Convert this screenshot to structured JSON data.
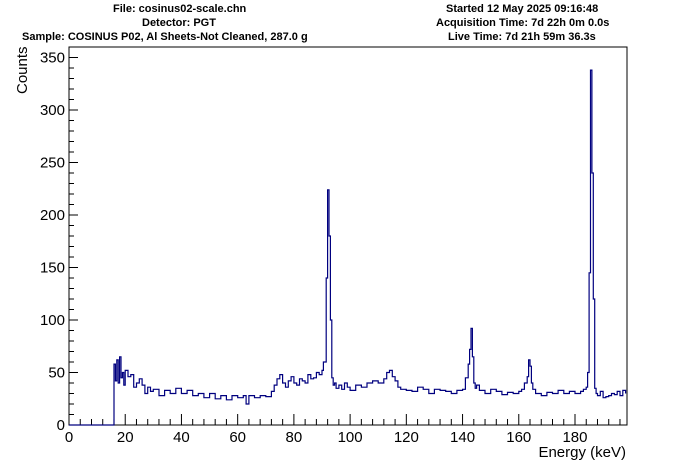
{
  "header": {
    "file": "File: cosinus02-scale.chn",
    "detector": "Detector: PGT",
    "sample": "Sample: COSINUS P02, Al Sheets-Not Cleaned, 287.0 g",
    "started": "Started 12 May 2025 09:16:48",
    "acquisition": "Acquisition Time: 7d 22h 0m 0.0s",
    "live": "Live Time: 7d 21h 59m 36.3s"
  },
  "colors": {
    "series": "#00007f",
    "axis": "#000000"
  },
  "chart_data": {
    "type": "line",
    "style": "step",
    "title": "",
    "xlabel": "Energy (keV)",
    "ylabel": "Counts",
    "xlim": [
      0,
      198.5
    ],
    "ylim": [
      0,
      360
    ],
    "xticks": [
      0,
      20,
      40,
      60,
      80,
      100,
      120,
      140,
      160,
      180
    ],
    "xtick_labels": [
      "0",
      "20",
      "40",
      "60",
      "80",
      "100",
      "120",
      "140",
      "160",
      "180"
    ],
    "yticks": [
      0,
      50,
      100,
      150,
      200,
      250,
      300,
      350
    ],
    "ytick_labels": [
      "0",
      "50",
      "100",
      "150",
      "200",
      "250",
      "300",
      "350"
    ],
    "grid": false,
    "series": [
      {
        "x": [
          0,
          16.0,
          16.5,
          17.0,
          17.5,
          18.0,
          18.5,
          19.0,
          19.5,
          20.0,
          21.0,
          22.0,
          23.0,
          24.0,
          25.0,
          26.0,
          27.0,
          28.0,
          29.0,
          30.0,
          32.0,
          34.0,
          36.0,
          38.0,
          40.0,
          42.0,
          44.0,
          46.0,
          48.0,
          50.0,
          52.0,
          54.0,
          56.0,
          58.0,
          60.0,
          62.0,
          63.0,
          64.0,
          66.0,
          68.0,
          70.0,
          72.0,
          73.0,
          74.0,
          75.0,
          76.0,
          77.0,
          78.0,
          79.0,
          80.0,
          81.0,
          82.0,
          83.0,
          84.0,
          85.0,
          86.0,
          87.0,
          88.0,
          89.0,
          90.0,
          90.5,
          91.0,
          91.5,
          92.0,
          92.5,
          93.0,
          93.5,
          94.0,
          94.5,
          95.0,
          96.0,
          97.0,
          98.0,
          99.0,
          100.0,
          102.0,
          104.0,
          106.0,
          108.0,
          110.0,
          112.0,
          113.0,
          114.0,
          115.0,
          116.0,
          117.0,
          118.0,
          120.0,
          122.0,
          124.0,
          126.0,
          128.0,
          130.0,
          132.0,
          134.0,
          136.0,
          138.0,
          140.0,
          141.0,
          142.0,
          142.5,
          143.0,
          143.5,
          144.0,
          144.5,
          145.0,
          146.0,
          148.0,
          150.0,
          152.0,
          154.0,
          156.0,
          158.0,
          160.0,
          161.0,
          162.0,
          163.0,
          163.5,
          164.0,
          164.5,
          165.0,
          166.0,
          168.0,
          170.0,
          172.0,
          174.0,
          176.0,
          178.0,
          180.0,
          182.0,
          183.0,
          184.0,
          184.5,
          185.0,
          185.5,
          186.0,
          186.5,
          187.0,
          187.5,
          188.0,
          189.0,
          190.0,
          191.0,
          192.0,
          193.0,
          194.0,
          195.0,
          196.0,
          197.0,
          198.0
        ],
        "y": [
          0,
          58,
          42,
          62,
          40,
          65,
          45,
          50,
          38,
          52,
          46,
          48,
          36,
          40,
          44,
          38,
          30,
          36,
          32,
          34,
          28,
          33,
          30,
          35,
          30,
          33,
          28,
          30,
          26,
          30,
          25,
          28,
          24,
          28,
          26,
          28,
          20,
          28,
          26,
          28,
          27,
          32,
          38,
          44,
          48,
          40,
          36,
          42,
          46,
          40,
          38,
          44,
          42,
          40,
          48,
          44,
          45,
          50,
          48,
          52,
          60,
          60,
          140,
          224,
          180,
          100,
          45,
          38,
          40,
          35,
          38,
          34,
          40,
          36,
          33,
          38,
          36,
          40,
          42,
          40,
          44,
          50,
          52,
          46,
          42,
          36,
          34,
          33,
          32,
          36,
          34,
          30,
          34,
          33,
          32,
          30,
          33,
          34,
          45,
          58,
          72,
          92,
          65,
          40,
          35,
          38,
          33,
          30,
          34,
          32,
          29,
          31,
          30,
          32,
          34,
          40,
          46,
          62,
          56,
          40,
          34,
          30,
          28,
          31,
          30,
          33,
          30,
          32,
          30,
          32,
          34,
          36,
          50,
          145,
          338,
          240,
          120,
          35,
          30,
          28,
          32,
          26,
          27,
          28,
          30,
          29,
          32,
          28,
          33,
          30
        ]
      }
    ]
  }
}
